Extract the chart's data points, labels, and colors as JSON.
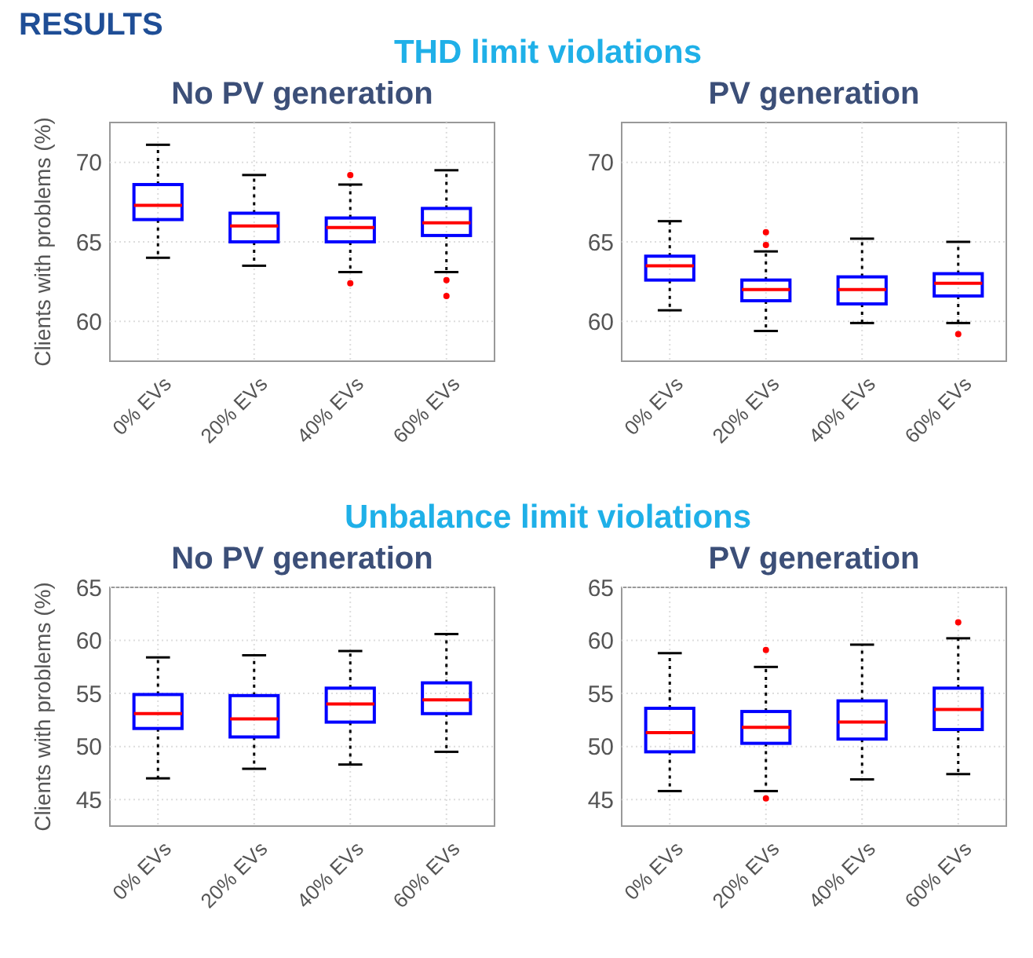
{
  "chart_data": [
    {
      "type": "box",
      "title": "No PV generation",
      "ylabel": "Clients with problems (%)",
      "annotations": [
        "RESULTS",
        "THD limit violations"
      ],
      "categories": [
        "0% EVs",
        "20% EVs",
        "40% EVs",
        "60% EVs"
      ],
      "ylim": [
        57.5,
        72.5
      ],
      "yticks": [
        60,
        65,
        70
      ],
      "grid": true,
      "series": [
        {
          "color": "#0000ff",
          "boxes": [
            {
              "low": 64.0,
              "q1": 66.4,
              "median": 67.3,
              "q3": 68.6,
              "high": 71.1
            },
            {
              "low": 63.5,
              "q1": 65.0,
              "median": 66.0,
              "q3": 66.8,
              "high": 69.2
            },
            {
              "low": 63.1,
              "q1": 65.0,
              "median": 65.9,
              "q3": 66.5,
              "high": 68.6,
              "outliers": [
                69.2,
                62.4
              ]
            },
            {
              "low": 63.1,
              "q1": 65.4,
              "median": 66.2,
              "q3": 67.1,
              "high": 69.5,
              "outliers": [
                62.6,
                61.6
              ]
            }
          ]
        }
      ]
    },
    {
      "type": "box",
      "title": "PV generation",
      "categories": [
        "0% EVs",
        "20% EVs",
        "40% EVs",
        "60% EVs"
      ],
      "ylim": [
        57.5,
        72.5
      ],
      "yticks": [
        60,
        65,
        70
      ],
      "grid": true,
      "series": [
        {
          "color": "#0000ff",
          "boxes": [
            {
              "low": 60.7,
              "q1": 62.6,
              "median": 63.5,
              "q3": 64.1,
              "high": 66.3
            },
            {
              "low": 59.4,
              "q1": 61.3,
              "median": 62.0,
              "q3": 62.6,
              "high": 64.4,
              "outliers": [
                65.6,
                64.8
              ]
            },
            {
              "low": 59.9,
              "q1": 61.1,
              "median": 62.0,
              "q3": 62.8,
              "high": 65.2
            },
            {
              "low": 59.9,
              "q1": 61.6,
              "median": 62.4,
              "q3": 63.0,
              "high": 65.0,
              "outliers": [
                59.2
              ]
            }
          ]
        }
      ]
    },
    {
      "type": "box",
      "title": "No PV generation",
      "ylabel": "Clients with problems (%)",
      "annotations": [
        "Unbalance limit violations"
      ],
      "categories": [
        "0% EVs",
        "20% EVs",
        "40% EVs",
        "60% EVs"
      ],
      "ylim": [
        42.5,
        65
      ],
      "yticks": [
        45,
        50,
        55,
        60,
        65
      ],
      "grid": true,
      "series": [
        {
          "color": "#0000ff",
          "boxes": [
            {
              "low": 47.0,
              "q1": 51.7,
              "median": 53.1,
              "q3": 54.9,
              "high": 58.4
            },
            {
              "low": 47.9,
              "q1": 50.9,
              "median": 52.6,
              "q3": 54.8,
              "high": 58.6
            },
            {
              "low": 48.3,
              "q1": 52.3,
              "median": 54.0,
              "q3": 55.5,
              "high": 59.0
            },
            {
              "low": 49.5,
              "q1": 53.1,
              "median": 54.4,
              "q3": 56.0,
              "high": 60.6
            }
          ]
        }
      ]
    },
    {
      "type": "box",
      "title": "PV generation",
      "categories": [
        "0% EVs",
        "20% EVs",
        "40% EVs",
        "60% EVs"
      ],
      "ylim": [
        42.5,
        65
      ],
      "yticks": [
        45,
        50,
        55,
        60,
        65
      ],
      "grid": true,
      "series": [
        {
          "color": "#0000ff",
          "boxes": [
            {
              "low": 45.8,
              "q1": 49.5,
              "median": 51.3,
              "q3": 53.6,
              "high": 58.8
            },
            {
              "low": 45.8,
              "q1": 50.3,
              "median": 51.8,
              "q3": 53.3,
              "high": 57.5,
              "outliers": [
                59.1,
                45.1
              ]
            },
            {
              "low": 46.9,
              "q1": 50.7,
              "median": 52.3,
              "q3": 54.3,
              "high": 59.6
            },
            {
              "low": 47.4,
              "q1": 51.6,
              "median": 53.5,
              "q3": 55.5,
              "high": 60.2,
              "outliers": [
                61.7
              ]
            }
          ]
        }
      ]
    }
  ]
}
